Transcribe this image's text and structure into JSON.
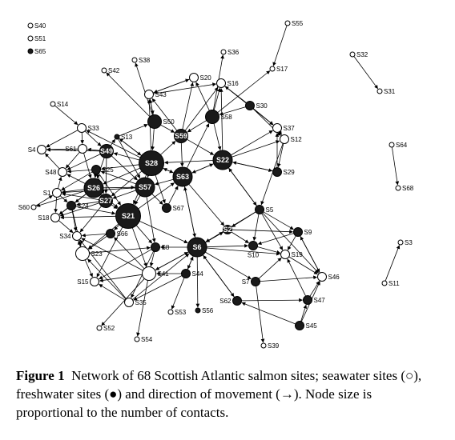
{
  "figure": {
    "label": "Figure 1",
    "caption": "Network of 68 Scottish Atlantic salmon sites; seawater sites (○), freshwater sites (●) and direction of movement (→). Node size is proportional to the number of contacts."
  },
  "legend": [
    "S40",
    "S51",
    "S65"
  ],
  "colors": {
    "seawater": "#ffffff",
    "freshwater": "#1a1a1a",
    "stroke": "#000000"
  },
  "nodes": [
    {
      "id": "S55",
      "type": "sea",
      "size": "xs"
    },
    {
      "id": "S32",
      "type": "sea",
      "size": "xs"
    },
    {
      "id": "S31",
      "type": "sea",
      "size": "xs"
    },
    {
      "id": "S36",
      "type": "sea",
      "size": "xs"
    },
    {
      "id": "S38",
      "type": "sea",
      "size": "xs"
    },
    {
      "id": "S17",
      "type": "sea",
      "size": "xs"
    },
    {
      "id": "S42",
      "type": "sea",
      "size": "xs"
    },
    {
      "id": "S20",
      "type": "sea",
      "size": "s"
    },
    {
      "id": "S16",
      "type": "sea",
      "size": "s"
    },
    {
      "id": "S43",
      "type": "sea",
      "size": "s"
    },
    {
      "id": "S14",
      "type": "sea",
      "size": "xs"
    },
    {
      "id": "S30",
      "type": "fresh",
      "size": "s"
    },
    {
      "id": "S58",
      "type": "fresh",
      "size": "m"
    },
    {
      "id": "S50",
      "type": "fresh",
      "size": "m"
    },
    {
      "id": "S33",
      "type": "sea",
      "size": "s"
    },
    {
      "id": "S37",
      "type": "sea",
      "size": "s"
    },
    {
      "id": "S13",
      "type": "fresh",
      "size": "xs"
    },
    {
      "id": "S59",
      "type": "fresh",
      "size": "m",
      "inside": true
    },
    {
      "id": "S12",
      "type": "sea",
      "size": "s"
    },
    {
      "id": "S64",
      "type": "sea",
      "size": "xs"
    },
    {
      "id": "S4",
      "type": "sea",
      "size": "s"
    },
    {
      "id": "S61",
      "type": "sea",
      "size": "s"
    },
    {
      "id": "S49",
      "type": "fresh",
      "size": "m",
      "inside": true
    },
    {
      "id": "S28",
      "type": "fresh",
      "size": "xl",
      "inside": true
    },
    {
      "id": "S22",
      "type": "fresh",
      "size": "l",
      "inside": true
    },
    {
      "id": "S25",
      "type": "fresh",
      "size": "s"
    },
    {
      "id": "S48",
      "type": "sea",
      "size": "s"
    },
    {
      "id": "S29",
      "type": "fresh",
      "size": "s"
    },
    {
      "id": "S63",
      "type": "fresh",
      "size": "l",
      "inside": true
    },
    {
      "id": "S26",
      "type": "fresh",
      "size": "l",
      "inside": true
    },
    {
      "id": "S57",
      "type": "fresh",
      "size": "l",
      "inside": true
    },
    {
      "id": "S68",
      "type": "sea",
      "size": "xs"
    },
    {
      "id": "S1",
      "type": "sea",
      "size": "s"
    },
    {
      "id": "S27",
      "type": "fresh",
      "size": "m",
      "inside": true
    },
    {
      "id": "S60",
      "type": "sea",
      "size": "xs"
    },
    {
      "id": "S24",
      "type": "fresh",
      "size": "s"
    },
    {
      "id": "S67",
      "type": "fresh",
      "size": "s"
    },
    {
      "id": "S5",
      "type": "fresh",
      "size": "s"
    },
    {
      "id": "S18",
      "type": "sea",
      "size": "s"
    },
    {
      "id": "S21",
      "type": "fresh",
      "size": "xl",
      "inside": true
    },
    {
      "id": "S2",
      "type": "fresh",
      "size": "s",
      "inside": true
    },
    {
      "id": "S9",
      "type": "fresh",
      "size": "s"
    },
    {
      "id": "S34",
      "type": "sea",
      "size": "s"
    },
    {
      "id": "S66",
      "type": "fresh",
      "size": "s"
    },
    {
      "id": "S3",
      "type": "sea",
      "size": "xs"
    },
    {
      "id": "S8",
      "type": "fresh",
      "size": "s"
    },
    {
      "id": "S6",
      "type": "fresh",
      "size": "l",
      "inside": true
    },
    {
      "id": "S10",
      "type": "fresh",
      "size": "s"
    },
    {
      "id": "S19",
      "type": "sea",
      "size": "s"
    },
    {
      "id": "S23",
      "type": "sea",
      "size": "m"
    },
    {
      "id": "S44",
      "type": "fresh",
      "size": "s"
    },
    {
      "id": "S41",
      "type": "sea",
      "size": "m"
    },
    {
      "id": "S46",
      "type": "sea",
      "size": "s"
    },
    {
      "id": "S7",
      "type": "fresh",
      "size": "s"
    },
    {
      "id": "S15",
      "type": "sea",
      "size": "s"
    },
    {
      "id": "S11",
      "type": "sea",
      "size": "xs"
    },
    {
      "id": "S47",
      "type": "fresh",
      "size": "s"
    },
    {
      "id": "S62",
      "type": "fresh",
      "size": "s"
    },
    {
      "id": "S35",
      "type": "sea",
      "size": "s"
    },
    {
      "id": "S53",
      "type": "sea",
      "size": "xs"
    },
    {
      "id": "S56",
      "type": "fresh",
      "size": "xs"
    },
    {
      "id": "S45",
      "type": "fresh",
      "size": "s"
    },
    {
      "id": "S52",
      "type": "sea",
      "size": "xs"
    },
    {
      "id": "S54",
      "type": "sea",
      "size": "xs"
    },
    {
      "id": "S39",
      "type": "sea",
      "size": "xs"
    }
  ],
  "edges": [
    [
      "S55",
      "S17"
    ],
    [
      "S32",
      "S31"
    ],
    [
      "S64",
      "S68"
    ],
    [
      "S11",
      "S3"
    ],
    [
      "S58",
      "S36"
    ],
    [
      "S58",
      "S20"
    ],
    [
      "S58",
      "S16"
    ],
    [
      "S58",
      "S17"
    ],
    [
      "S58",
      "S22"
    ],
    [
      "S58",
      "S59"
    ],
    [
      "S50",
      "S38"
    ],
    [
      "S50",
      "S42"
    ],
    [
      "S50",
      "S43"
    ],
    [
      "S50",
      "S59"
    ],
    [
      "S50",
      "S28"
    ],
    [
      "S43",
      "S50"
    ],
    [
      "S43",
      "S16"
    ],
    [
      "S43",
      "S20"
    ],
    [
      "S30",
      "S16"
    ],
    [
      "S30",
      "S37"
    ],
    [
      "S30",
      "S12"
    ],
    [
      "S30",
      "S58"
    ],
    [
      "S59",
      "S16"
    ],
    [
      "S59",
      "S20"
    ],
    [
      "S59",
      "S22"
    ],
    [
      "S59",
      "S43"
    ],
    [
      "S59",
      "S63"
    ],
    [
      "S28",
      "S43"
    ],
    [
      "S28",
      "S13"
    ],
    [
      "S28",
      "S49"
    ],
    [
      "S28",
      "S25"
    ],
    [
      "S28",
      "S26"
    ],
    [
      "S28",
      "S63"
    ],
    [
      "S28",
      "S67"
    ],
    [
      "S28",
      "S27"
    ],
    [
      "S28",
      "S33"
    ],
    [
      "S28",
      "S57"
    ],
    [
      "S28",
      "S21"
    ],
    [
      "S28",
      "S59"
    ],
    [
      "S33",
      "S49"
    ],
    [
      "S33",
      "S61"
    ],
    [
      "S33",
      "S4"
    ],
    [
      "S14",
      "S33"
    ],
    [
      "S49",
      "S4"
    ],
    [
      "S49",
      "S61"
    ],
    [
      "S49",
      "S48"
    ],
    [
      "S49",
      "S26"
    ],
    [
      "S49",
      "S57"
    ],
    [
      "S49",
      "S13"
    ],
    [
      "S49",
      "S27"
    ],
    [
      "S13",
      "S28"
    ],
    [
      "S13",
      "S57"
    ],
    [
      "S13",
      "S50"
    ],
    [
      "S61",
      "S4"
    ],
    [
      "S61",
      "S48"
    ],
    [
      "S61",
      "S26"
    ],
    [
      "S25",
      "S48"
    ],
    [
      "S25",
      "S1"
    ],
    [
      "S25",
      "S26"
    ],
    [
      "S25",
      "S21"
    ],
    [
      "S25",
      "S27"
    ],
    [
      "S26",
      "S60"
    ],
    [
      "S26",
      "S1"
    ],
    [
      "S26",
      "S27"
    ],
    [
      "S26",
      "S24"
    ],
    [
      "S26",
      "S57"
    ],
    [
      "S26",
      "S21"
    ],
    [
      "S26",
      "S18"
    ],
    [
      "S26",
      "S48"
    ],
    [
      "S57",
      "S1"
    ],
    [
      "S57",
      "S67"
    ],
    [
      "S57",
      "S21"
    ],
    [
      "S57",
      "S27"
    ],
    [
      "S57",
      "S25"
    ],
    [
      "S57",
      "S8"
    ],
    [
      "S27",
      "S24"
    ],
    [
      "S27",
      "S18"
    ],
    [
      "S27",
      "S21"
    ],
    [
      "S27",
      "S34"
    ],
    [
      "S27",
      "S1"
    ],
    [
      "S24",
      "S34"
    ],
    [
      "S24",
      "S23"
    ],
    [
      "S24",
      "S18"
    ],
    [
      "S24",
      "S21"
    ],
    [
      "S21",
      "S66"
    ],
    [
      "S21",
      "S23"
    ],
    [
      "S21",
      "S8"
    ],
    [
      "S21",
      "S41"
    ],
    [
      "S21",
      "S6"
    ],
    [
      "S21",
      "S15"
    ],
    [
      "S21",
      "S63"
    ],
    [
      "S21",
      "S18"
    ],
    [
      "S63",
      "S22"
    ],
    [
      "S63",
      "S28"
    ],
    [
      "S63",
      "S6"
    ],
    [
      "S63",
      "S2"
    ],
    [
      "S63",
      "S57"
    ],
    [
      "S63",
      "S58"
    ],
    [
      "S22",
      "S37"
    ],
    [
      "S22",
      "S12"
    ],
    [
      "S22",
      "S29"
    ],
    [
      "S22",
      "S63"
    ],
    [
      "S22",
      "S16"
    ],
    [
      "S22",
      "S5"
    ],
    [
      "S22",
      "S28"
    ],
    [
      "S29",
      "S22"
    ],
    [
      "S29",
      "S37"
    ],
    [
      "S37",
      "S12"
    ],
    [
      "S12",
      "S29"
    ],
    [
      "S12",
      "S5"
    ],
    [
      "S5",
      "S9"
    ],
    [
      "S5",
      "S2"
    ],
    [
      "S5",
      "S19"
    ],
    [
      "S5",
      "S10"
    ],
    [
      "S5",
      "S46"
    ],
    [
      "S5",
      "S6"
    ],
    [
      "S5",
      "S22"
    ],
    [
      "S9",
      "S19"
    ],
    [
      "S9",
      "S46"
    ],
    [
      "S9",
      "S10"
    ],
    [
      "S2",
      "S10"
    ],
    [
      "S2",
      "S9"
    ],
    [
      "S2",
      "S6"
    ],
    [
      "S6",
      "S8"
    ],
    [
      "S6",
      "S44"
    ],
    [
      "S6",
      "S41"
    ],
    [
      "S6",
      "S56"
    ],
    [
      "S6",
      "S62"
    ],
    [
      "S6",
      "S7"
    ],
    [
      "S6",
      "S19"
    ],
    [
      "S6",
      "S10"
    ],
    [
      "S6",
      "S63"
    ],
    [
      "S6",
      "S2"
    ],
    [
      "S8",
      "S41"
    ],
    [
      "S8",
      "S35"
    ],
    [
      "S8",
      "S15"
    ],
    [
      "S44",
      "S53"
    ],
    [
      "S44",
      "S41"
    ],
    [
      "S44",
      "S35"
    ],
    [
      "S44",
      "S6"
    ],
    [
      "S41",
      "S54"
    ],
    [
      "S41",
      "S52"
    ],
    [
      "S41",
      "S15"
    ],
    [
      "S41",
      "S34"
    ],
    [
      "S41",
      "S6"
    ],
    [
      "S41",
      "S66"
    ],
    [
      "S35",
      "S15"
    ],
    [
      "S35",
      "S23"
    ],
    [
      "S35",
      "S34"
    ],
    [
      "S35",
      "S6"
    ],
    [
      "S23",
      "S34"
    ],
    [
      "S23",
      "S15"
    ],
    [
      "S23",
      "S8"
    ],
    [
      "S66",
      "S23"
    ],
    [
      "S66",
      "S34"
    ],
    [
      "S7",
      "S46"
    ],
    [
      "S7",
      "S39"
    ],
    [
      "S7",
      "S19"
    ],
    [
      "S62",
      "S47"
    ],
    [
      "S62",
      "S6"
    ],
    [
      "S45",
      "S47"
    ],
    [
      "S45",
      "S62"
    ],
    [
      "S45",
      "S46"
    ],
    [
      "S47",
      "S46"
    ],
    [
      "S47",
      "S19"
    ],
    [
      "S46",
      "S9"
    ],
    [
      "S18",
      "S34"
    ],
    [
      "S60",
      "S1"
    ],
    [
      "S1",
      "S48"
    ],
    [
      "S1",
      "S24"
    ],
    [
      "S1",
      "S18"
    ],
    [
      "S48",
      "S4"
    ],
    [
      "S67",
      "S63"
    ],
    [
      "S16",
      "S37"
    ],
    [
      "S20",
      "S43"
    ],
    [
      "S10",
      "S19"
    ],
    [
      "S19",
      "S46"
    ]
  ]
}
